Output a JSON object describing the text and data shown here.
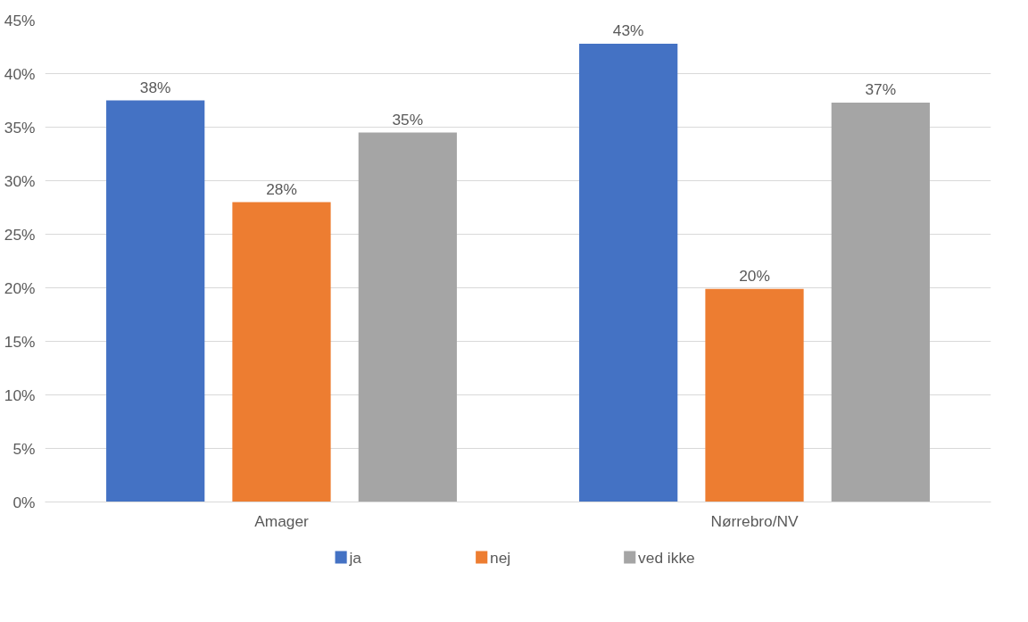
{
  "chart_data": {
    "type": "bar",
    "categories": [
      "Amager",
      "Nørrebro/NV"
    ],
    "series": [
      {
        "name": "ja",
        "color": "#4472c4",
        "values": [
          37.5,
          42.8
        ],
        "value_labels": [
          "38%",
          "43%"
        ]
      },
      {
        "name": "nej",
        "color": "#ed7d31",
        "values": [
          28,
          19.9
        ],
        "value_labels": [
          "28%",
          "20%"
        ]
      },
      {
        "name": "ved ikke",
        "color": "#a5a5a5",
        "values": [
          34.5,
          37.3
        ],
        "value_labels": [
          "35%",
          "37%"
        ]
      }
    ],
    "ylim": [
      0,
      45
    ],
    "yticks": [
      {
        "value": 0,
        "label": "0%"
      },
      {
        "value": 5,
        "label": "5%"
      },
      {
        "value": 10,
        "label": "10%"
      },
      {
        "value": 15,
        "label": "15%"
      },
      {
        "value": 20,
        "label": "20%"
      },
      {
        "value": 25,
        "label": "25%"
      },
      {
        "value": 30,
        "label": "30%"
      },
      {
        "value": 35,
        "label": "35%"
      },
      {
        "value": 40,
        "label": "40%"
      },
      {
        "value": 45,
        "label": "45%"
      }
    ],
    "grid": "y",
    "legend": "bottom"
  }
}
